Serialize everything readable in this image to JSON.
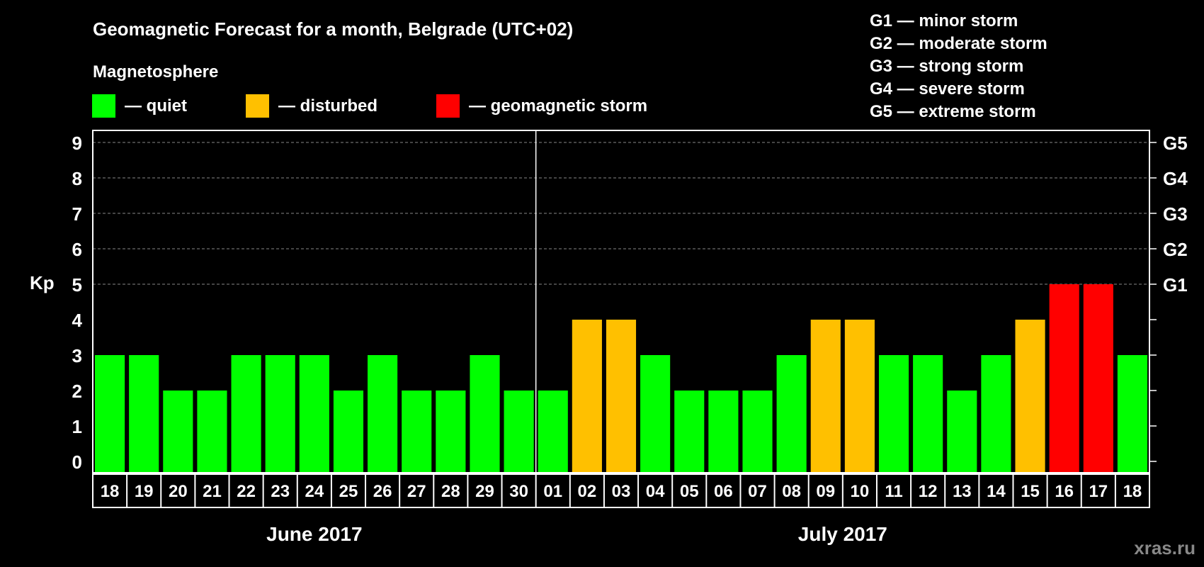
{
  "chart_data": {
    "type": "bar",
    "title": "Geomagnetic Forecast for a month, Belgrade (UTC+02)",
    "legend_title": "Magnetosphere",
    "legend": [
      {
        "label": "— quiet",
        "color": "#00ff00"
      },
      {
        "label": "— disturbed",
        "color": "#ffc000"
      },
      {
        "label": "— geomagnetic storm",
        "color": "#ff0000"
      }
    ],
    "scale_legend": [
      "G1 — minor storm",
      "G2 — moderate storm",
      "G3 — strong storm",
      "G4 — severe storm",
      "G5 — extreme storm"
    ],
    "ylabel": "Kp",
    "ylim": [
      0,
      9
    ],
    "yticks": [
      "0",
      "1",
      "2",
      "3",
      "4",
      "5",
      "6",
      "7",
      "8",
      "9"
    ],
    "right_ticks": [
      {
        "value": 5,
        "label": "G1"
      },
      {
        "value": 6,
        "label": "G2"
      },
      {
        "value": 7,
        "label": "G3"
      },
      {
        "value": 8,
        "label": "G4"
      },
      {
        "value": 9,
        "label": "G5"
      }
    ],
    "categories": [
      "18",
      "19",
      "20",
      "21",
      "22",
      "23",
      "24",
      "25",
      "26",
      "27",
      "28",
      "29",
      "30",
      "01",
      "02",
      "03",
      "04",
      "05",
      "06",
      "07",
      "08",
      "09",
      "10",
      "11",
      "12",
      "13",
      "14",
      "15",
      "16",
      "17",
      "18"
    ],
    "values": [
      3,
      3,
      2,
      2,
      3,
      3,
      3,
      2,
      3,
      2,
      2,
      3,
      2,
      2,
      4,
      4,
      3,
      2,
      2,
      2,
      3,
      4,
      4,
      3,
      3,
      2,
      3,
      4,
      5,
      5,
      3
    ],
    "months": [
      {
        "label": "June 2017",
        "days": 13
      },
      {
        "label": "July 2017",
        "days": 18
      }
    ],
    "watermark": "xras.ru"
  }
}
